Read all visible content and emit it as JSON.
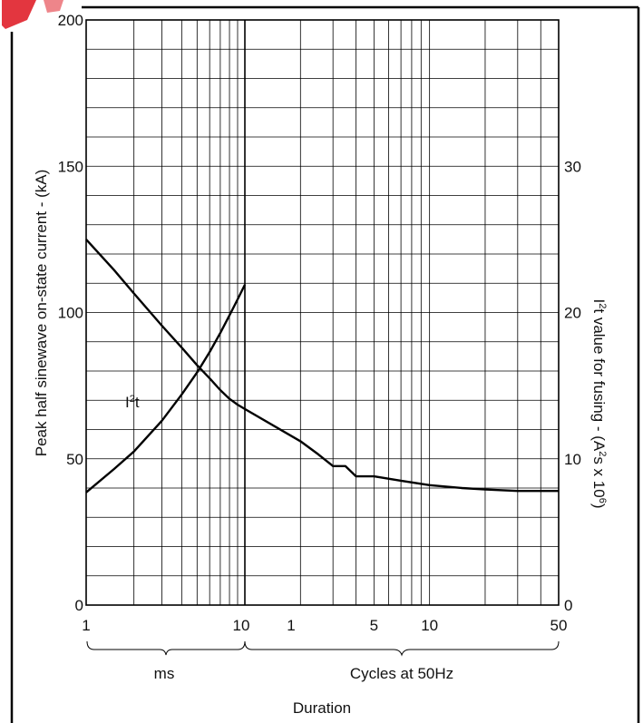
{
  "watermark_color": "#e0202a",
  "chart_data": {
    "type": "line",
    "title": "",
    "grid": true,
    "xscale": "log",
    "xlabel": "Duration",
    "x_segments": [
      {
        "label": "ms",
        "range": [
          1,
          10
        ],
        "tick_labels": [
          "1",
          "10"
        ]
      },
      {
        "label": "Cycles at 50Hz",
        "range": [
          1,
          50
        ],
        "tick_labels": [
          "1",
          "5",
          "10",
          "50"
        ]
      }
    ],
    "left_axis": {
      "label": "Peak half sinewave on-state current - (kA)",
      "ylim": [
        0,
        200
      ],
      "ticks": [
        "0",
        "50",
        "100",
        "150",
        "200"
      ]
    },
    "right_axis": {
      "label_parts": [
        "I",
        "2",
        "t value for fusing - (A",
        "2",
        "s x 10",
        "6",
        ")"
      ],
      "ylim": [
        0,
        40
      ],
      "ticks": [
        "0",
        "10",
        "20",
        "30"
      ]
    },
    "series": [
      {
        "name_parts": [
          "I",
          "2",
          "t"
        ],
        "axis": "right",
        "segment": "ms",
        "x": [
          1,
          1.5,
          2,
          3,
          4,
          5,
          6,
          7,
          8,
          9,
          10
        ],
        "y": [
          7.7,
          9.3,
          10.5,
          12.6,
          14.4,
          15.9,
          17.3,
          18.6,
          19.8,
          20.9,
          21.9
        ]
      },
      {
        "name": "",
        "axis": "left",
        "segments": [
          {
            "unit": "ms",
            "x": [
              1,
              1.5,
              2,
              3,
              4,
              5,
              6,
              7,
              8,
              9,
              10
            ],
            "y": [
              125,
              114.5,
              106.5,
              95.5,
              88,
              82,
              77.5,
              73.5,
              70.5,
              68.5,
              67
            ]
          },
          {
            "unit": "cycles",
            "x": [
              1,
              1,
              2,
              2,
              2.5,
              2.5,
              3,
              3,
              3.5,
              3.5,
              4,
              4,
              5,
              7,
              10,
              15,
              20,
              30,
              50
            ],
            "y": [
              67,
              67,
              56,
              56,
              51.5,
              51.5,
              47.5,
              47.5,
              47.5,
              47.5,
              44,
              44,
              44,
              42.5,
              41,
              40,
              39.5,
              39,
              39
            ]
          }
        ]
      }
    ]
  }
}
